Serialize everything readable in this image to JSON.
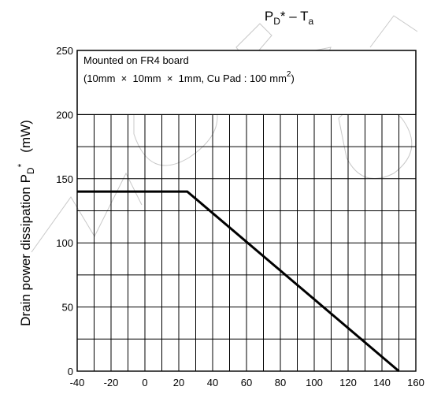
{
  "chart_data": {
    "type": "line",
    "title_parts": {
      "p": "P",
      "d": "D",
      "star_dash": "* – T",
      "a": "a"
    },
    "ylabel_parts": {
      "main": "Drain power dissipation P",
      "sub": "D",
      "sup": "*",
      "unit": "(mW)"
    },
    "xlim": [
      -40,
      160
    ],
    "ylim": [
      0,
      250
    ],
    "x_ticks": [
      -40,
      -20,
      0,
      20,
      40,
      60,
      80,
      100,
      120,
      140,
      160
    ],
    "y_ticks": [
      0,
      50,
      100,
      150,
      200,
      250
    ],
    "x_tick_labels": [
      "-40",
      "-20",
      "0",
      "20",
      "40",
      "60",
      "80",
      "100",
      "120",
      "140",
      "160"
    ],
    "y_tick_labels": [
      "0",
      "50",
      "100",
      "150",
      "200",
      "250"
    ],
    "x_minor_step": 10,
    "y_minor_step": 25,
    "grid": true,
    "annotation": {
      "line1": "Mounted on FR4 board",
      "line2": "(10mm  ×  10mm  ×  1mm, Cu Pad : 100 mm",
      "line2_sup": "2",
      "line2_end": ")"
    },
    "series": [
      {
        "x": [
          -40,
          25,
          150
        ],
        "y": [
          140,
          140,
          0
        ]
      }
    ]
  }
}
